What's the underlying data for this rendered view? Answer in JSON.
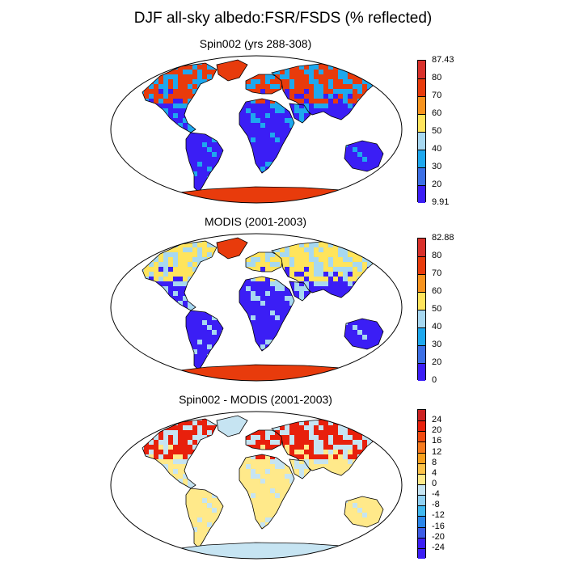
{
  "title": "DJF all-sky albedo:FSR/FSDS (% reflected)",
  "panels": [
    {
      "id": "spin002",
      "title": "Spin002 (yrs 288-308)",
      "colorbar": {
        "labels": [
          "87.43",
          "80",
          "70",
          "60",
          "50",
          "40",
          "30",
          "20",
          "9.91"
        ],
        "colors": [
          "#d9302b",
          "#e83b0c",
          "#f7931e",
          "#ffe45c",
          "#a7d8f0",
          "#1ea8ee",
          "#3c6fe6",
          "#3b1ef5"
        ]
      },
      "land_palette": {
        "low": "#3b1ef5",
        "mid": "#1ea8ee",
        "high": "#e83b0c",
        "ice": "#e83b0c"
      }
    },
    {
      "id": "modis",
      "title": "MODIS (2001-2003)",
      "colorbar": {
        "labels": [
          "82.88",
          "80",
          "70",
          "60",
          "50",
          "40",
          "30",
          "20",
          "0"
        ],
        "colors": [
          "#d9302b",
          "#e83b0c",
          "#f7931e",
          "#ffe45c",
          "#a7d8f0",
          "#1ea8ee",
          "#3c6fe6",
          "#3b1ef5"
        ]
      },
      "land_palette": {
        "low": "#3b1ef5",
        "mid": "#a7d8f0",
        "high": "#ffe45c",
        "ice": "#e83b0c"
      }
    },
    {
      "id": "difference",
      "title": "Spin002 - MODIS (2001-2003)",
      "colorbar": {
        "labels": [
          "24",
          "20",
          "16",
          "12",
          "8",
          "4",
          "0",
          "-4",
          "-8",
          "-12",
          "-16",
          "-20",
          "-24"
        ],
        "colors": [
          "#cc2222",
          "#e8200c",
          "#f24a10",
          "#f77a1e",
          "#f7a01e",
          "#fcc24a",
          "#ffe98a",
          "#c6e4f2",
          "#8fd0f2",
          "#40b8ef",
          "#2a86ea",
          "#3c5ce6",
          "#3b1ef5",
          "#3b1ef5"
        ]
      },
      "land_palette": {
        "low": "#ffe98a",
        "mid": "#c6e4f2",
        "high": "#e8200c",
        "ice": "#c6e4f2"
      }
    }
  ]
}
